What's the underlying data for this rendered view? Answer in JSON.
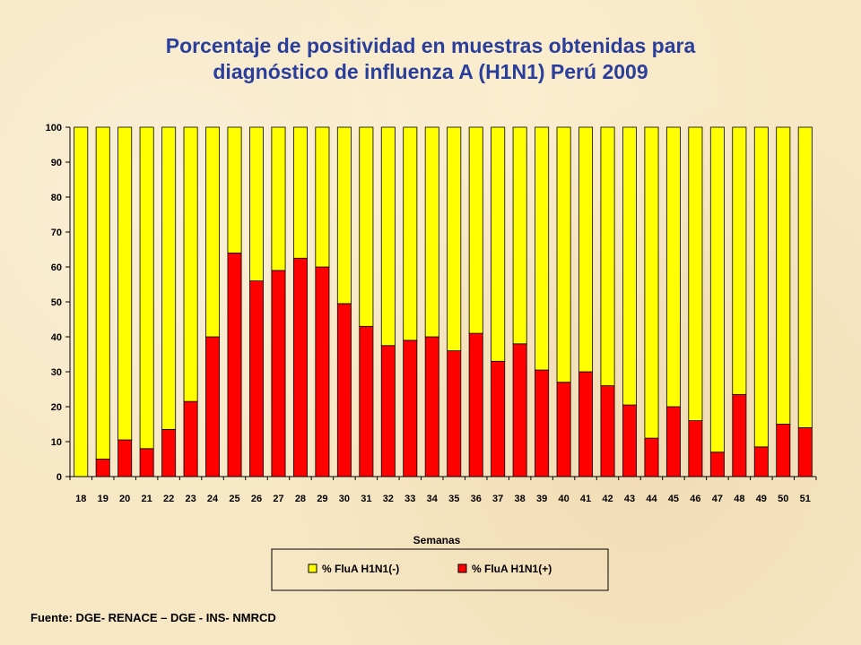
{
  "title_line1": "Porcentaje de positividad en muestras obtenidas para",
  "title_line2": "diagnóstico de influenza A (H1N1) Perú 2009",
  "source": "Fuente: DGE- RENACE – DGE - INS- NMRCD",
  "colors": {
    "negative": "#ffff00",
    "positive": "#ff0000",
    "title": "#2a3f9c"
  },
  "chart_data": {
    "type": "bar",
    "stacked": true,
    "xlabel": "Semanas",
    "ylabel": "",
    "ylim": [
      0,
      100
    ],
    "yticks": [
      0,
      10,
      20,
      30,
      40,
      50,
      60,
      70,
      80,
      90,
      100
    ],
    "grid": false,
    "legend_position": "bottom",
    "categories": [
      "18",
      "19",
      "20",
      "21",
      "22",
      "23",
      "24",
      "25",
      "26",
      "27",
      "28",
      "29",
      "30",
      "31",
      "32",
      "33",
      "34",
      "35",
      "36",
      "37",
      "38",
      "39",
      "40",
      "41",
      "42",
      "43",
      "44",
      "45",
      "46",
      "47",
      "48",
      "49",
      "50",
      "51"
    ],
    "series": [
      {
        "name": "% FluA H1N1(+)",
        "values": [
          0,
          5,
          10.5,
          8,
          13.5,
          21.5,
          40,
          64,
          56,
          59,
          62.5,
          60,
          49.5,
          43,
          37.5,
          39,
          40,
          36,
          41,
          33,
          38,
          30.5,
          27,
          30,
          26,
          20.5,
          11,
          20,
          16,
          7,
          23.5,
          8.5,
          15,
          14
        ]
      },
      {
        "name": "% FluA H1N1(-)",
        "values": [
          100,
          95,
          89.5,
          92,
          86.5,
          78.5,
          60,
          36,
          44,
          41,
          37.5,
          40,
          50.5,
          57,
          62.5,
          61,
          60,
          64,
          59,
          67,
          62,
          69.5,
          73,
          70,
          74,
          79.5,
          89,
          80,
          84,
          93,
          76.5,
          91.5,
          85,
          86
        ]
      }
    ],
    "legend": [
      "% FluA H1N1(-)",
      "% FluA H1N1(+)"
    ]
  }
}
